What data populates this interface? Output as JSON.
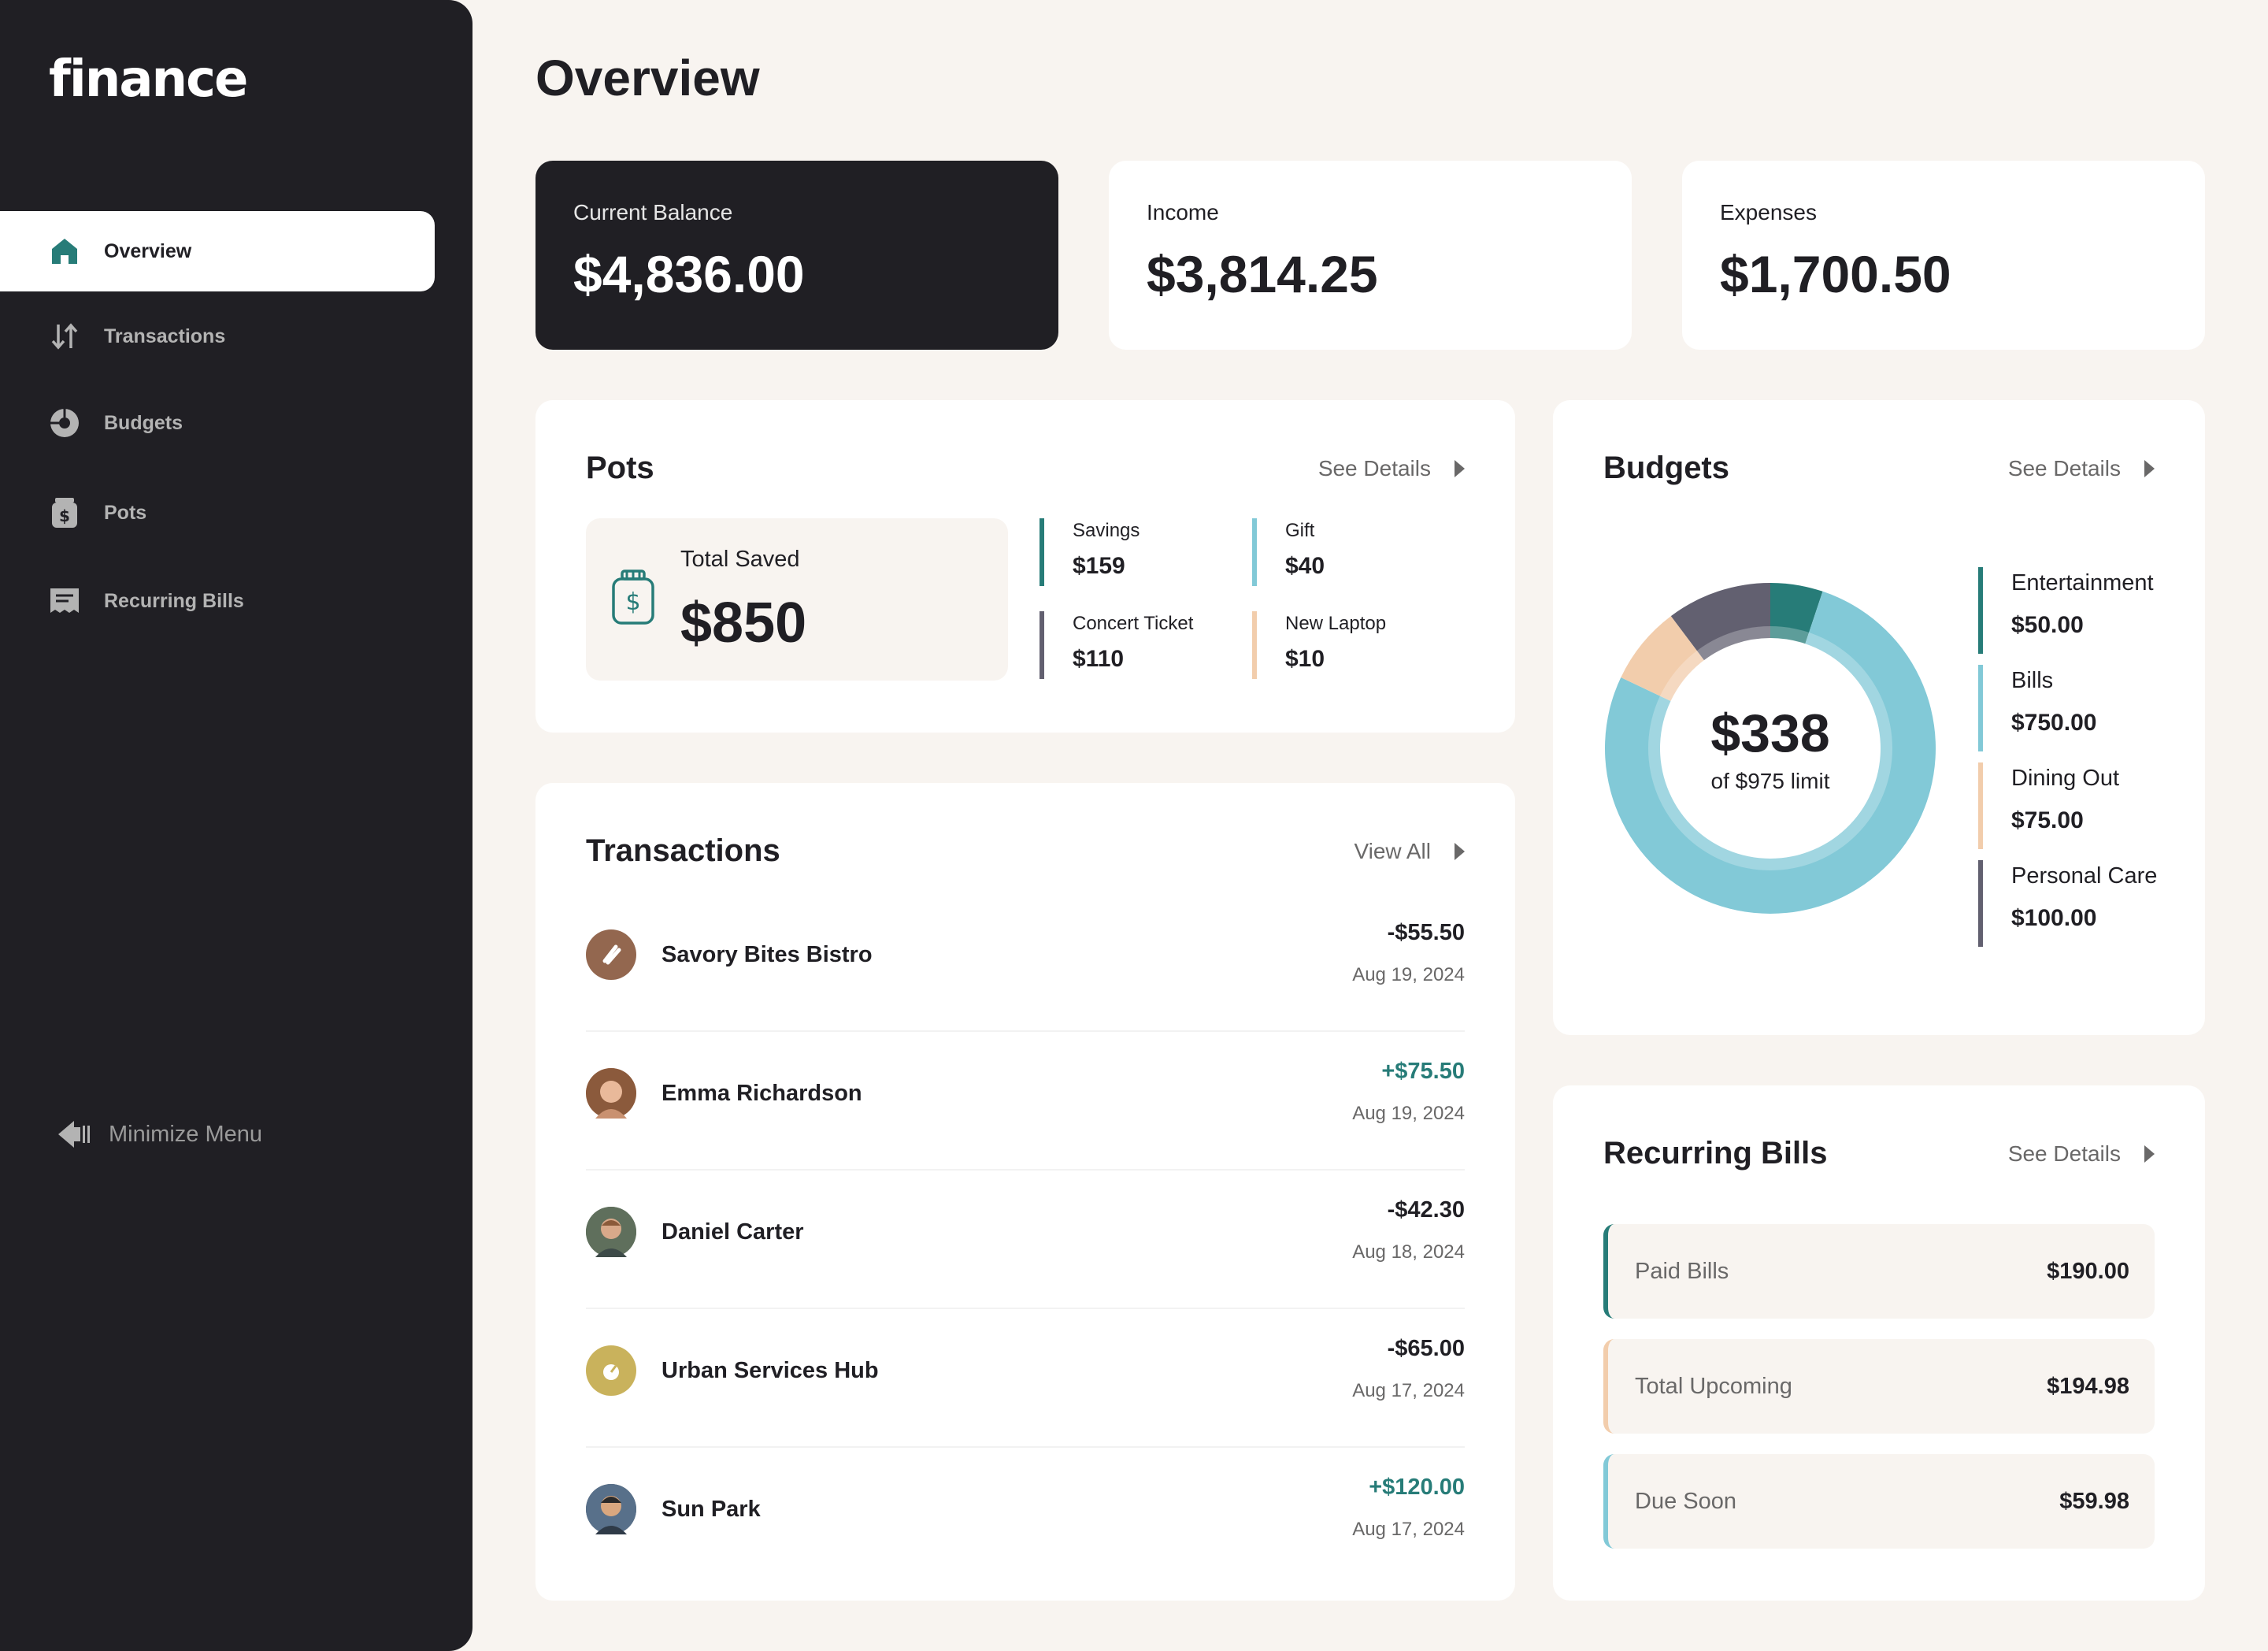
{
  "app": {
    "logo": "finance"
  },
  "sidebar": {
    "items": [
      {
        "label": "Overview"
      },
      {
        "label": "Transactions"
      },
      {
        "label": "Budgets"
      },
      {
        "label": "Pots"
      },
      {
        "label": "Recurring Bills"
      }
    ],
    "minimize_label": "Minimize Menu"
  },
  "page": {
    "title": "Overview"
  },
  "summary": {
    "balance": {
      "label": "Current Balance",
      "value": "$4,836.00"
    },
    "income": {
      "label": "Income",
      "value": "$3,814.25"
    },
    "expenses": {
      "label": "Expenses",
      "value": "$1,700.50"
    }
  },
  "pots": {
    "title": "Pots",
    "link": "See Details",
    "total_label": "Total Saved",
    "total_value": "$850",
    "items": [
      {
        "name": "Savings",
        "amount": "$159",
        "color": "#277c78"
      },
      {
        "name": "Gift",
        "amount": "$40",
        "color": "#82c9d7"
      },
      {
        "name": "Concert Ticket",
        "amount": "$110",
        "color": "#626070"
      },
      {
        "name": "New Laptop",
        "amount": "$10",
        "color": "#f2cdac"
      }
    ]
  },
  "transactions": {
    "title": "Transactions",
    "link": "View All",
    "items": [
      {
        "name": "Savory Bites Bistro",
        "amount": "-$55.50",
        "date": "Aug 19, 2024",
        "positive": false,
        "avatar_color": "#93674f"
      },
      {
        "name": "Emma Richardson",
        "amount": "+$75.50",
        "date": "Aug 19, 2024",
        "positive": true,
        "avatar_color": "#c99170"
      },
      {
        "name": "Daniel Carter",
        "amount": "-$42.30",
        "date": "Aug 18, 2024",
        "positive": false,
        "avatar_color": "#6f7d6a"
      },
      {
        "name": "Urban Services Hub",
        "amount": "-$65.00",
        "date": "Aug 17, 2024",
        "positive": false,
        "avatar_color": "#c9b25c"
      },
      {
        "name": "Sun Park",
        "amount": "+$120.00",
        "date": "Aug 17, 2024",
        "positive": true,
        "avatar_color": "#4a5563"
      }
    ]
  },
  "budgets": {
    "title": "Budgets",
    "link": "See Details",
    "spent": "$338",
    "limit_text": "of $975 limit",
    "items": [
      {
        "name": "Entertainment",
        "amount": "$50.00",
        "value": 50,
        "color": "#277c78"
      },
      {
        "name": "Bills",
        "amount": "$750.00",
        "value": 750,
        "color": "#82c9d7"
      },
      {
        "name": "Dining Out",
        "amount": "$75.00",
        "value": 75,
        "color": "#f2cdac"
      },
      {
        "name": "Personal Care",
        "amount": "$100.00",
        "value": 100,
        "color": "#626070"
      }
    ]
  },
  "bills": {
    "title": "Recurring Bills",
    "link": "See Details",
    "items": [
      {
        "label": "Paid Bills",
        "amount": "$190.00",
        "color": "#277c78"
      },
      {
        "label": "Total Upcoming",
        "amount": "$194.98",
        "color": "#f2cdac"
      },
      {
        "label": "Due Soon",
        "amount": "$59.98",
        "color": "#82c9d7"
      }
    ]
  }
}
